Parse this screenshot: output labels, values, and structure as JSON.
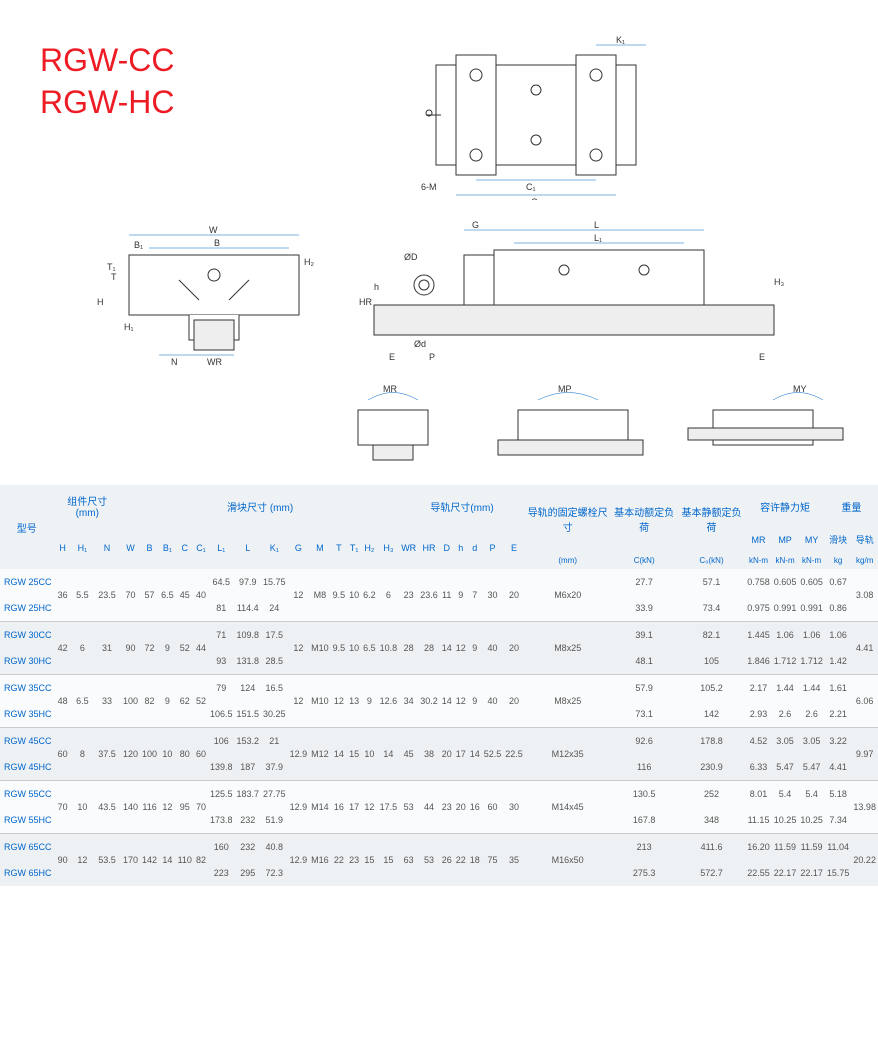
{
  "title": {
    "line1": "RGW-CC",
    "line2": "RGW-HC"
  },
  "diagram_labels": {
    "top_K1": "K₁",
    "top_6M": "6-M",
    "top_C1": "C₁",
    "top_C": "C",
    "front_W": "W",
    "front_B1": "B₁",
    "front_B": "B",
    "front_H2": "H₂",
    "front_T1": "T₁",
    "front_T": "T",
    "front_H": "H",
    "front_H1": "H₁",
    "front_N": "N",
    "front_WR": "WR",
    "side_G": "G",
    "side_L": "L",
    "side_L1": "L₁",
    "side_OD": "ØD",
    "side_HR": "HR",
    "side_h": "h",
    "side_Od": "Ød",
    "side_E": "E",
    "side_P": "P",
    "side_H3": "H₃",
    "moment_MR": "MR",
    "moment_MP": "MP",
    "moment_MY": "MY"
  },
  "headers": {
    "model": "型号",
    "assembly": "组件尺寸 (mm)",
    "block": "滑块尺寸 (mm)",
    "rail": "导轨尺寸(mm)",
    "bolt": "导轨的固定螺栓尺寸",
    "dyn": "基本动额定负荷",
    "stat": "基本静额定负荷",
    "moment": "容许静力矩",
    "weight": "重量",
    "H": "H",
    "H1": "H₁",
    "N": "N",
    "W": "W",
    "B": "B",
    "B1": "B₁",
    "C": "C",
    "C1": "C₁",
    "L1": "L₁",
    "L": "L",
    "K1": "K₁",
    "G": "G",
    "M": "M",
    "T": "T",
    "T1": "T₁",
    "H2": "H₂",
    "H3": "H₃",
    "WR": "WR",
    "HR": "HR",
    "D": "D",
    "h": "h",
    "d": "d",
    "P": "P",
    "E": "E",
    "mm": "(mm)",
    "CkN": "C(kN)",
    "C0kN": "C₀(kN)",
    "MR": "MR",
    "MP": "MP",
    "MY": "MY",
    "kNm": "kN-m",
    "block_w": "滑块",
    "rail_w": "导轨",
    "kg": "kg",
    "kgm": "kg/m"
  },
  "rows": [
    {
      "model": "RGW 25CC",
      "H": "36",
      "H1": "5.5",
      "N": "23.5",
      "W": "70",
      "B": "57",
      "B1": "6.5",
      "C": "45",
      "C1": "40",
      "L1": "64.5",
      "L": "97.9",
      "K1": "15.75",
      "G": "12",
      "M": "M8",
      "T": "9.5",
      "T1": "10",
      "H2": "6.2",
      "H3": "6",
      "WR": "23",
      "HR": "23.6",
      "D": "11",
      "h": "9",
      "d": "7",
      "P": "30",
      "E": "20",
      "bolt": "M6x20",
      "CkN": "27.7",
      "C0kN": "57.1",
      "MR": "0.758",
      "MP": "0.605",
      "MY": "0.605",
      "bw": "0.67",
      "rw": "3.08"
    },
    {
      "model": "RGW 25HC",
      "L1": "81",
      "L": "114.4",
      "K1": "24",
      "CkN": "33.9",
      "C0kN": "73.4",
      "MR": "0.975",
      "MP": "0.991",
      "MY": "0.991",
      "bw": "0.86"
    },
    {
      "model": "RGW 30CC",
      "H": "42",
      "H1": "6",
      "N": "31",
      "W": "90",
      "B": "72",
      "B1": "9",
      "C": "52",
      "C1": "44",
      "L1": "71",
      "L": "109.8",
      "K1": "17.5",
      "G": "12",
      "M": "M10",
      "T": "9.5",
      "T1": "10",
      "H2": "6.5",
      "H3": "10.8",
      "WR": "28",
      "HR": "28",
      "D": "14",
      "h": "12",
      "d": "9",
      "P": "40",
      "E": "20",
      "bolt": "M8x25",
      "CkN": "39.1",
      "C0kN": "82.1",
      "MR": "1.445",
      "MP": "1.06",
      "MY": "1.06",
      "bw": "1.06",
      "rw": "4.41"
    },
    {
      "model": "RGW 30HC",
      "L1": "93",
      "L": "131.8",
      "K1": "28.5",
      "CkN": "48.1",
      "C0kN": "105",
      "MR": "1.846",
      "MP": "1.712",
      "MY": "1.712",
      "bw": "1.42"
    },
    {
      "model": "RGW 35CC",
      "H": "48",
      "H1": "6.5",
      "N": "33",
      "W": "100",
      "B": "82",
      "B1": "9",
      "C": "62",
      "C1": "52",
      "L1": "79",
      "L": "124",
      "K1": "16.5",
      "G": "12",
      "M": "M10",
      "T": "12",
      "T1": "13",
      "H2": "9",
      "H3": "12.6",
      "WR": "34",
      "HR": "30.2",
      "D": "14",
      "h": "12",
      "d": "9",
      "P": "40",
      "E": "20",
      "bolt": "M8x25",
      "CkN": "57.9",
      "C0kN": "105.2",
      "MR": "2.17",
      "MP": "1.44",
      "MY": "1.44",
      "bw": "1.61",
      "rw": "6.06"
    },
    {
      "model": "RGW 35HC",
      "L1": "106.5",
      "L": "151.5",
      "K1": "30.25",
      "CkN": "73.1",
      "C0kN": "142",
      "MR": "2.93",
      "MP": "2.6",
      "MY": "2.6",
      "bw": "2.21"
    },
    {
      "model": "RGW 45CC",
      "H": "60",
      "H1": "8",
      "N": "37.5",
      "W": "120",
      "B": "100",
      "B1": "10",
      "C": "80",
      "C1": "60",
      "L1": "106",
      "L": "153.2",
      "K1": "21",
      "G": "12.9",
      "M": "M12",
      "T": "14",
      "T1": "15",
      "H2": "10",
      "H3": "14",
      "WR": "45",
      "HR": "38",
      "D": "20",
      "h": "17",
      "d": "14",
      "P": "52.5",
      "E": "22.5",
      "bolt": "M12x35",
      "CkN": "92.6",
      "C0kN": "178.8",
      "MR": "4.52",
      "MP": "3.05",
      "MY": "3.05",
      "bw": "3.22",
      "rw": "9.97"
    },
    {
      "model": "RGW 45HC",
      "L1": "139.8",
      "L": "187",
      "K1": "37.9",
      "CkN": "116",
      "C0kN": "230.9",
      "MR": "6.33",
      "MP": "5.47",
      "MY": "5.47",
      "bw": "4.41"
    },
    {
      "model": "RGW 55CC",
      "H": "70",
      "H1": "10",
      "N": "43.5",
      "W": "140",
      "B": "116",
      "B1": "12",
      "C": "95",
      "C1": "70",
      "L1": "125.5",
      "L": "183.7",
      "K1": "27.75",
      "G": "12.9",
      "M": "M14",
      "T": "16",
      "T1": "17",
      "H2": "12",
      "H3": "17.5",
      "WR": "53",
      "HR": "44",
      "D": "23",
      "h": "20",
      "d": "16",
      "P": "60",
      "E": "30",
      "bolt": "M14x45",
      "CkN": "130.5",
      "C0kN": "252",
      "MR": "8.01",
      "MP": "5.4",
      "MY": "5.4",
      "bw": "5.18",
      "rw": "13.98"
    },
    {
      "model": "RGW 55HC",
      "L1": "173.8",
      "L": "232",
      "K1": "51.9",
      "CkN": "167.8",
      "C0kN": "348",
      "MR": "11.15",
      "MP": "10.25",
      "MY": "10.25",
      "bw": "7.34"
    },
    {
      "model": "RGW 65CC",
      "H": "90",
      "H1": "12",
      "N": "53.5",
      "W": "170",
      "B": "142",
      "B1": "14",
      "C": "110",
      "C1": "82",
      "L1": "160",
      "L": "232",
      "K1": "40.8",
      "G": "12.9",
      "M": "M16",
      "T": "22",
      "T1": "23",
      "H2": "15",
      "H3": "15",
      "WR": "63",
      "HR": "53",
      "D": "26",
      "h": "22",
      "d": "18",
      "P": "75",
      "E": "35",
      "bolt": "M16x50",
      "CkN": "213",
      "C0kN": "411.6",
      "MR": "16.20",
      "MP": "11.59",
      "MY": "11.59",
      "bw": "11.04",
      "rw": "20.22"
    },
    {
      "model": "RGW 65HC",
      "L1": "223",
      "L": "295",
      "K1": "72.3",
      "CkN": "275.3",
      "C0kN": "572.7",
      "MR": "22.55",
      "MP": "22.17",
      "MY": "22.17",
      "bw": "15.75"
    }
  ],
  "colors": {
    "title": "#ed1c24",
    "header": "#0066cc",
    "stroke": "#0066cc",
    "text": "#555555"
  }
}
